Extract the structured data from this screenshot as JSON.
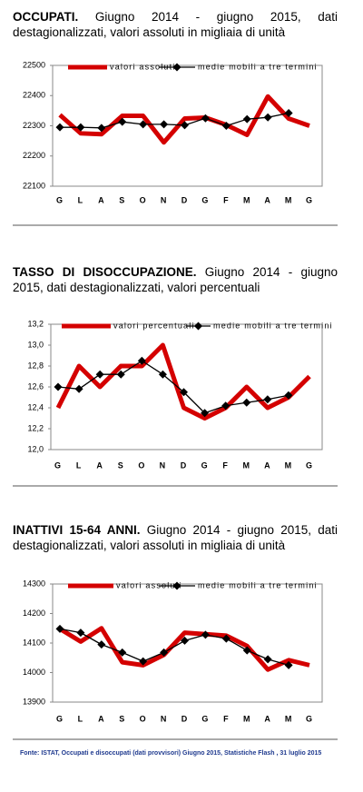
{
  "chart_data": [
    {
      "type": "line",
      "title": "OCCUPATI.",
      "subtitle": "Giugno 2014 - giugno 2015, dati destagionalizzati, valori assoluti in migliaia di unità",
      "categories": [
        "G",
        "L",
        "A",
        "S",
        "O",
        "N",
        "D",
        "G",
        "F",
        "M",
        "A",
        "M",
        "G"
      ],
      "series": [
        {
          "name": "valori assoluti",
          "color": "#d40000",
          "marker": "none",
          "values": [
            22336,
            22275,
            22272,
            22333,
            22333,
            22245,
            22324,
            22327,
            22303,
            22270,
            22397,
            22324,
            22300
          ]
        },
        {
          "name": "medie mobili a tre termini",
          "color": "#000000",
          "marker": "diamond",
          "values": [
            22295,
            22295,
            22293,
            22313,
            22305,
            22305,
            22302,
            22325,
            22300,
            22322,
            22328,
            22342,
            null
          ]
        }
      ],
      "ylim": [
        22100,
        22500
      ],
      "yticks": [
        22100,
        22200,
        22300,
        22400,
        22500
      ],
      "grid": false
    },
    {
      "type": "line",
      "title": "TASSO DI DISOCCUPAZIONE.",
      "subtitle": "Giugno 2014 - giugno 2015, dati destagionalizzati, valori percentuali",
      "categories": [
        "G",
        "L",
        "A",
        "S",
        "O",
        "N",
        "D",
        "G",
        "F",
        "M",
        "A",
        "M",
        "G"
      ],
      "series": [
        {
          "name": "valori percentuali",
          "color": "#d40000",
          "marker": "none",
          "values": [
            12.4,
            12.8,
            12.6,
            12.8,
            12.8,
            13.0,
            12.4,
            12.3,
            12.4,
            12.6,
            12.4,
            12.5,
            12.7
          ]
        },
        {
          "name": "medie mobili a tre termini",
          "color": "#000000",
          "marker": "diamond",
          "values": [
            12.6,
            12.58,
            12.72,
            12.72,
            12.85,
            12.72,
            12.55,
            12.35,
            12.42,
            12.45,
            12.48,
            12.52,
            null
          ]
        }
      ],
      "ylim": [
        12.0,
        13.2
      ],
      "yticks": [
        {
          "value": 12.0,
          "label": "12,0"
        },
        {
          "value": 12.2,
          "label": "12,2"
        },
        {
          "value": 12.4,
          "label": "12,4"
        },
        {
          "value": 12.6,
          "label": "12,6"
        },
        {
          "value": 12.8,
          "label": "12,8"
        },
        {
          "value": 13.0,
          "label": "13,0"
        },
        {
          "value": 13.2,
          "label": "13,2"
        }
      ],
      "grid": false
    },
    {
      "type": "line",
      "title": "INATTIVI 15-64 ANNI.",
      "subtitle": "Giugno 2014 - giugno 2015, dati destagionalizzati, valori assoluti in migliaia di unità",
      "categories": [
        "G",
        "L",
        "A",
        "S",
        "O",
        "N",
        "D",
        "G",
        "F",
        "M",
        "A",
        "M",
        "G"
      ],
      "series": [
        {
          "name": "valori assoluti",
          "color": "#d40000",
          "marker": "none",
          "values": [
            14148,
            14105,
            14150,
            14035,
            14025,
            14060,
            14135,
            14130,
            14125,
            14090,
            14010,
            14042,
            14025
          ]
        },
        {
          "name": "medie mobili a tre termini",
          "color": "#000000",
          "marker": "diamond",
          "values": [
            14148,
            14135,
            14095,
            14068,
            14038,
            14068,
            14108,
            14128,
            14115,
            14075,
            14045,
            14025,
            null
          ]
        }
      ],
      "ylim": [
        13900,
        14300
      ],
      "yticks": [
        13900,
        14000,
        14100,
        14200,
        14300
      ],
      "grid": false
    }
  ],
  "source": "Fonte: ISTAT, Occupati e disoccupati (dati provvisori) Giugno 2015, Statistiche Flash , 31 luglio 2015"
}
